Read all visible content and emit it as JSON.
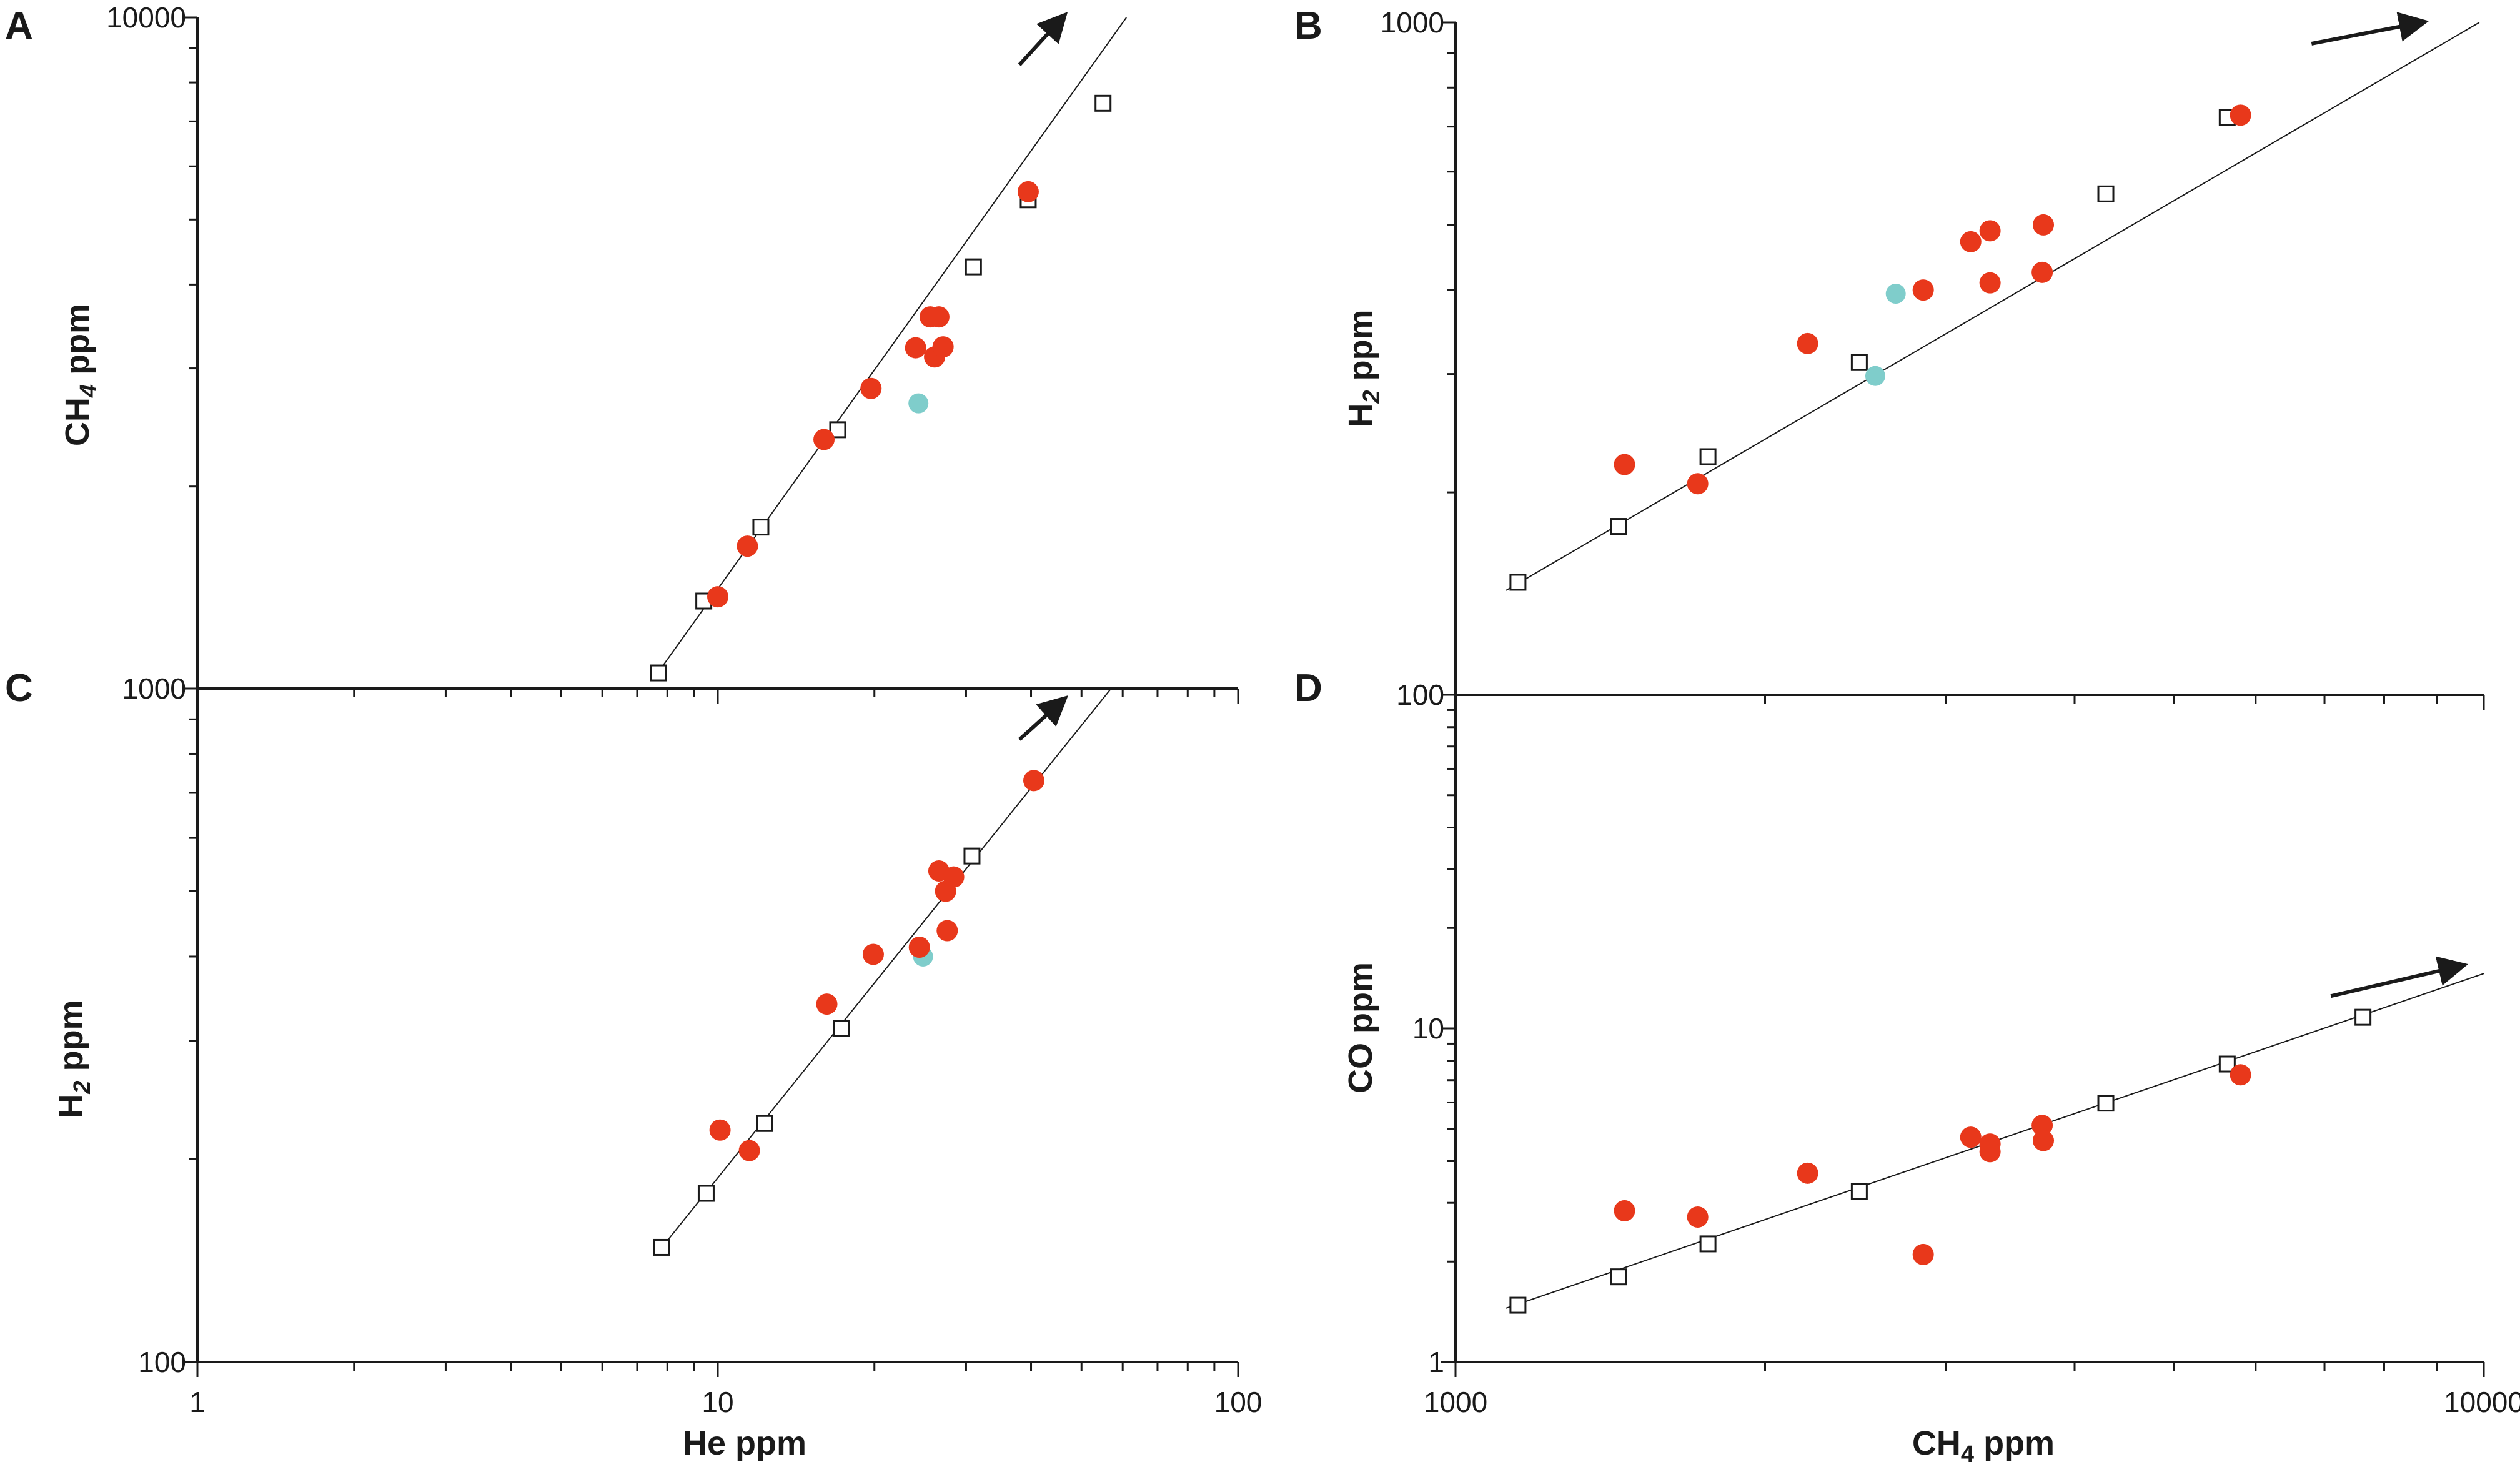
{
  "colors": {
    "sample": "#e8381b",
    "reference": "#7fcdcb",
    "model": "#ffffff",
    "axis": "#1a1a1a"
  },
  "chart_data": [
    {
      "panel": "A",
      "type": "scatter",
      "xlabel": "He ppm",
      "ylabel_main": "CH",
      "ylabel_sub": "4",
      "ylabel_rest": " ppm",
      "xscale": "log",
      "yscale": "log",
      "xlim": [
        1,
        100
      ],
      "ylim": [
        1000,
        10000
      ],
      "x_tick_labels": [],
      "y_tick_labels": [
        {
          "value": 10000,
          "label": "10000"
        },
        {
          "value": 1000,
          "label": "1000"
        }
      ],
      "model_points": {
        "name": "model",
        "x": [
          7.7,
          9.4,
          12.1,
          17.0,
          31.0,
          39.5,
          55.0
        ],
        "y": [
          1055,
          1350,
          1740,
          2430,
          4250,
          5350,
          7450
        ]
      },
      "fit_line": {
        "x": [
          7.6,
          61.0
        ],
        "y": [
          1045,
          10000
        ]
      },
      "sample_points": {
        "name": "samples",
        "x": [
          10.0,
          11.4,
          16.0,
          19.7,
          24.0,
          25.6,
          26.6,
          26.1,
          27.1,
          39.5
        ],
        "y": [
          1370,
          1630,
          2350,
          2800,
          3220,
          3580,
          3580,
          3120,
          3230,
          5500
        ]
      },
      "reference_points": {
        "name": "reference",
        "x": [
          24.3
        ],
        "y": [
          2660
        ]
      },
      "arrow": {
        "from": [
          38.0,
          8500
        ],
        "to": [
          46.0,
          10000
        ]
      }
    },
    {
      "panel": "B",
      "type": "scatter",
      "xlabel": "",
      "ylabel_main": "H",
      "ylabel_sub": "2",
      "ylabel_rest": " ppm",
      "xscale": "log",
      "yscale": "log",
      "xlim": [
        1000,
        10000
      ],
      "ylim": [
        100,
        1000
      ],
      "x_tick_labels": [],
      "y_tick_labels": [
        {
          "value": 1000,
          "label": "1000"
        },
        {
          "value": 100,
          "label": "100"
        }
      ],
      "model_points": {
        "name": "model",
        "x": [
          1150,
          1440,
          1760,
          2470,
          4290,
          5630
        ],
        "y": [
          147,
          178,
          226,
          312,
          556,
          722
        ]
      },
      "fit_line": {
        "x": [
          1120,
          9900
        ],
        "y": [
          143,
          1000
        ]
      },
      "sample_points": {
        "name": "samples",
        "x": [
          1460,
          1720,
          2200,
          2850,
          3170,
          3310,
          3310,
          3720,
          3730,
          5800
        ],
        "y": [
          220,
          206,
          333,
          400,
          472,
          490,
          410,
          425,
          500,
          728
        ]
      },
      "reference_points": {
        "name": "reference",
        "x": [
          2680,
          2560
        ],
        "y": [
          395,
          298
        ]
      },
      "arrow": {
        "from": [
          6800,
          930
        ],
        "to": [
          8700,
          1000
        ]
      }
    },
    {
      "panel": "C",
      "type": "scatter",
      "xlabel": "He ppm",
      "ylabel_main": "H",
      "ylabel_sub": "2",
      "ylabel_rest": " ppm",
      "xscale": "log",
      "yscale": "log",
      "xlim": [
        1,
        100
      ],
      "ylim": [
        100,
        1000
      ],
      "x_tick_labels": [
        {
          "value": 1,
          "label": "1"
        },
        {
          "value": 10,
          "label": "10"
        },
        {
          "value": 100,
          "label": "100"
        }
      ],
      "y_tick_labels": [
        {
          "value": 1000,
          "label": "1000"
        },
        {
          "value": 100,
          "label": "100"
        }
      ],
      "model_points": {
        "name": "model",
        "x": [
          7.8,
          9.5,
          12.3,
          17.3,
          30.8
        ],
        "y": [
          148,
          178,
          226,
          313,
          564
        ]
      },
      "fit_line": {
        "x": [
          7.7,
          57.0
        ],
        "y": [
          146,
          1000
        ]
      },
      "sample_points": {
        "name": "samples",
        "x": [
          10.1,
          11.5,
          16.2,
          19.9,
          24.4,
          26.6,
          27.4,
          27.6,
          28.4,
          40.5
        ],
        "y": [
          221,
          206,
          340,
          403,
          413,
          536,
          500,
          437,
          525,
          730
        ]
      },
      "reference_points": {
        "name": "reference",
        "x": [
          24.8
        ],
        "y": [
          400
        ]
      },
      "arrow": {
        "from": [
          38.0,
          840
        ],
        "to": [
          46.0,
          960
        ]
      }
    },
    {
      "panel": "D",
      "type": "scatter",
      "xlabel_main": "CH",
      "xlabel_sub": "4",
      "xlabel_rest": " ppm",
      "ylabel_main": "CO ppm",
      "ylabel_sub": "",
      "ylabel_rest": "",
      "xscale": "log",
      "yscale": "log",
      "xlim": [
        1000,
        10000
      ],
      "ylim": [
        1,
        100
      ],
      "x_tick_labels": [
        {
          "value": 1000,
          "label": "1000"
        },
        {
          "value": 10000,
          "label": "10000"
        }
      ],
      "y_tick_labels": [
        {
          "value": 100,
          "label": "100"
        },
        {
          "value": 10,
          "label": "10"
        },
        {
          "value": 1,
          "label": "1"
        }
      ],
      "model_points": {
        "name": "model",
        "x": [
          1150,
          1440,
          1760,
          2470,
          4290,
          5630,
          7630
        ],
        "y": [
          1.48,
          1.8,
          2.26,
          3.24,
          5.97,
          7.82,
          10.8
        ]
      },
      "fit_line": {
        "x": [
          1120,
          10000
        ],
        "y": [
          1.45,
          14.6
        ]
      },
      "sample_points": {
        "name": "samples",
        "x": [
          1460,
          1720,
          2200,
          2850,
          3170,
          3310,
          3310,
          3720,
          3730,
          5800
        ],
        "y": [
          2.84,
          2.72,
          3.68,
          2.1,
          4.72,
          4.5,
          4.27,
          5.12,
          4.61,
          7.26
        ]
      },
      "reference_points": {
        "name": "reference",
        "x": [],
        "y": []
      },
      "arrow": {
        "from": [
          7100,
          12.5
        ],
        "to": [
          9500,
          15.4
        ]
      }
    }
  ]
}
